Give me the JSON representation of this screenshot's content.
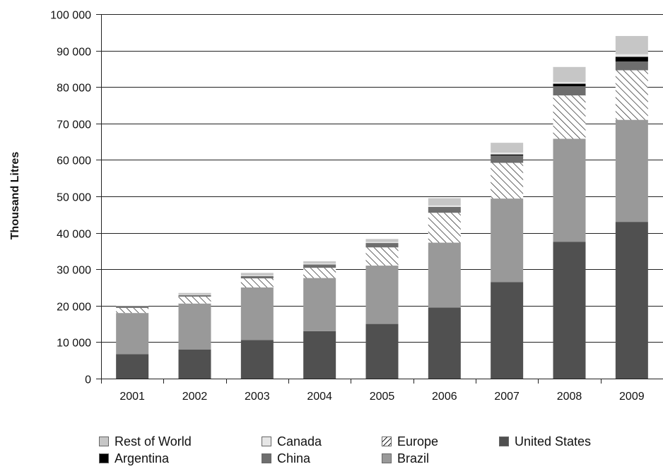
{
  "chart_data": {
    "type": "bar",
    "stacked": true,
    "title": "",
    "xlabel": "",
    "ylabel": "Thousand Litres",
    "ylim": [
      0,
      100000
    ],
    "yticks": [
      0,
      10000,
      20000,
      30000,
      40000,
      50000,
      60000,
      70000,
      80000,
      90000,
      100000
    ],
    "ytick_labels": [
      "0",
      "10 000",
      "20 000",
      "30 000",
      "40 000",
      "50 000",
      "60 000",
      "70 000",
      "80 000",
      "90 000",
      "100 000"
    ],
    "grid": true,
    "legend_position": "bottom",
    "categories": [
      "2001",
      "2002",
      "2003",
      "2004",
      "2005",
      "2006",
      "2007",
      "2008",
      "2009"
    ],
    "series": [
      {
        "name": "United States",
        "color": "#505050",
        "pattern": "solid",
        "values": [
          6700,
          8000,
          10600,
          13000,
          15000,
          19500,
          26500,
          37500,
          43000
        ]
      },
      {
        "name": "Brazil",
        "color": "#999999",
        "pattern": "solid",
        "values": [
          11300,
          12600,
          14400,
          14600,
          16000,
          17800,
          22900,
          28300,
          28000
        ]
      },
      {
        "name": "Europe",
        "color": "#ffffff",
        "pattern": "hatch",
        "values": [
          1400,
          1900,
          2500,
          2800,
          5000,
          8200,
          9800,
          11900,
          13600
        ]
      },
      {
        "name": "China",
        "color": "#6e6e6e",
        "pattern": "solid",
        "values": [
          400,
          400,
          600,
          900,
          1200,
          1600,
          2000,
          2500,
          2400
        ]
      },
      {
        "name": "Argentina",
        "color": "#000000",
        "pattern": "solid",
        "values": [
          0,
          0,
          0,
          0,
          0,
          0,
          300,
          700,
          1300
        ]
      },
      {
        "name": "Canada",
        "color": "#e6e6e6",
        "pattern": "solid",
        "values": [
          100,
          100,
          200,
          300,
          300,
          400,
          500,
          500,
          700
        ]
      },
      {
        "name": "Rest of World",
        "color": "#c6c6c6",
        "pattern": "solid",
        "values": [
          0,
          500,
          700,
          600,
          800,
          2000,
          2700,
          4100,
          5000
        ]
      }
    ]
  },
  "legend": [
    {
      "label": "Rest of World",
      "series": "Rest of World"
    },
    {
      "label": "Canada",
      "series": "Canada"
    },
    {
      "label": "Europe",
      "series": "Europe"
    },
    {
      "label": "United States",
      "series": "United States"
    },
    {
      "label": "Argentina",
      "series": "Argentina"
    },
    {
      "label": "China",
      "series": "China"
    },
    {
      "label": "Brazil",
      "series": "Brazil"
    }
  ]
}
